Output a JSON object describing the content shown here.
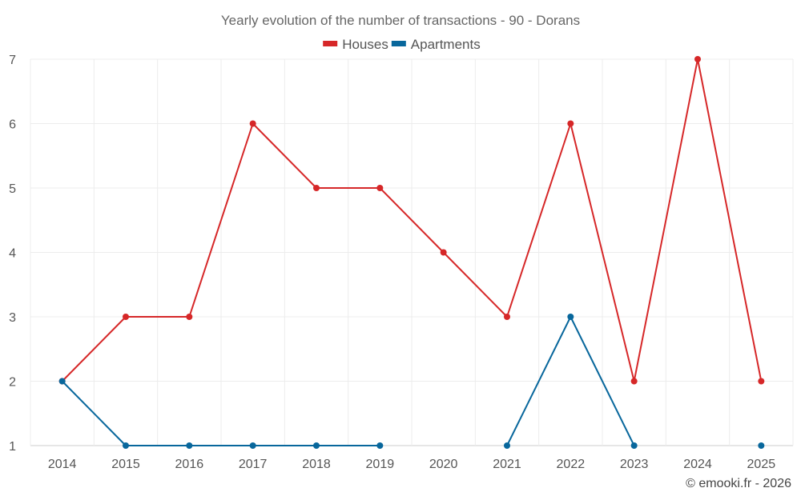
{
  "chart_data": {
    "type": "line",
    "title": "Yearly evolution of the number of transactions - 90 - Dorans",
    "xlabel": "",
    "ylabel": "",
    "categories": [
      "2014",
      "2015",
      "2016",
      "2017",
      "2018",
      "2019",
      "2020",
      "2021",
      "2022",
      "2023",
      "2024",
      "2025"
    ],
    "ylim": [
      1,
      7
    ],
    "yticks": [
      1,
      2,
      3,
      4,
      5,
      6,
      7
    ],
    "grid": true,
    "legend_position": "top-center",
    "series": [
      {
        "name": "Houses",
        "color": "#d62728",
        "values": [
          2,
          3,
          3,
          6,
          5,
          5,
          4,
          3,
          6,
          2,
          7,
          2
        ]
      },
      {
        "name": "Apartments",
        "color": "#08679c",
        "values": [
          2,
          1,
          1,
          1,
          1,
          1,
          null,
          1,
          3,
          1,
          null,
          1
        ]
      }
    ]
  },
  "credit": "© emooki.fr - 2026"
}
